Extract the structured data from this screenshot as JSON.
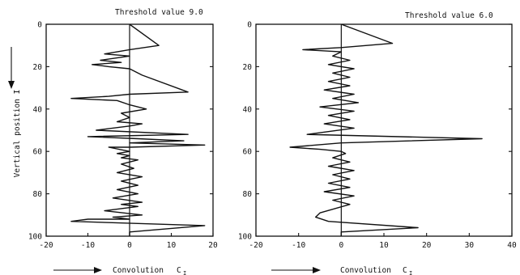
{
  "chart_data": [
    {
      "type": "line",
      "title": "Threshold value 9.0",
      "xlabel": "Convolution",
      "xlabel_symbol": "C",
      "xlabel_subscript": "I",
      "ylabel": "Vertical position I",
      "xlim": [
        -20,
        20
      ],
      "ylim": [
        0,
        100
      ],
      "y_inverted": true,
      "xticks": [
        -20,
        -10,
        0,
        10,
        20
      ],
      "yticks": [
        0,
        20,
        40,
        60,
        80,
        100
      ],
      "series": [
        {
          "x": [
            0,
            7,
            0,
            -6,
            0,
            -7,
            -2,
            -9,
            -5,
            0,
            3,
            14,
            0,
            -5,
            -14,
            -3,
            0,
            4,
            -2,
            0,
            -3,
            3,
            0,
            -8,
            14,
            -10,
            2,
            13,
            0,
            18,
            0,
            -5,
            0,
            -3,
            0,
            -2,
            2,
            -2,
            1,
            -3,
            3,
            -2,
            2,
            -3,
            2,
            -4,
            3,
            -2,
            2,
            -6,
            3,
            -4,
            0,
            -10,
            -14,
            18,
            0,
            0
          ],
          "y": [
            0,
            10,
            12,
            14,
            15,
            17,
            18,
            19,
            20,
            21,
            24,
            32,
            33,
            34,
            35,
            36,
            38,
            40,
            42,
            44,
            46,
            47,
            48,
            50,
            52,
            53,
            54,
            55,
            56,
            57,
            58,
            58,
            60,
            61,
            62,
            63,
            64,
            66,
            68,
            70,
            72,
            74,
            76,
            78,
            80,
            82,
            84,
            85,
            86,
            88,
            90,
            91,
            92,
            92,
            93,
            95,
            98,
            105
          ]
        }
      ]
    },
    {
      "type": "line",
      "title": "Threshold value 6.0",
      "xlabel": "Convolution",
      "xlabel_symbol": "C",
      "xlabel_subscript": "I",
      "ylabel": "",
      "xlim": [
        -20,
        40
      ],
      "ylim": [
        0,
        100
      ],
      "y_inverted": true,
      "xticks": [
        -20,
        -10,
        0,
        10,
        20,
        30,
        40
      ],
      "yticks": [
        0,
        20,
        40,
        60,
        80,
        100
      ],
      "series": [
        {
          "x": [
            0,
            12,
            0,
            -9,
            0,
            -2,
            2,
            -3,
            3,
            -2,
            2,
            -3,
            2,
            -4,
            3,
            -2,
            4,
            -5,
            3,
            -3,
            2,
            -4,
            3,
            -8,
            33,
            0,
            -12,
            -5,
            0,
            1,
            -2,
            2,
            -3,
            3,
            -2,
            2,
            -3,
            2,
            -4,
            3,
            -2,
            2,
            -5,
            -6,
            -3,
            18,
            0,
            0
          ],
          "y": [
            0,
            9,
            11,
            12,
            13,
            15,
            17,
            19,
            21,
            23,
            25,
            27,
            29,
            31,
            33,
            35,
            37,
            39,
            41,
            43,
            45,
            47,
            49,
            52,
            54,
            56,
            58,
            59,
            60,
            61,
            63,
            65,
            67,
            69,
            71,
            73,
            75,
            77,
            79,
            81,
            83,
            85,
            89,
            91,
            93,
            96,
            98,
            105
          ]
        }
      ]
    }
  ]
}
